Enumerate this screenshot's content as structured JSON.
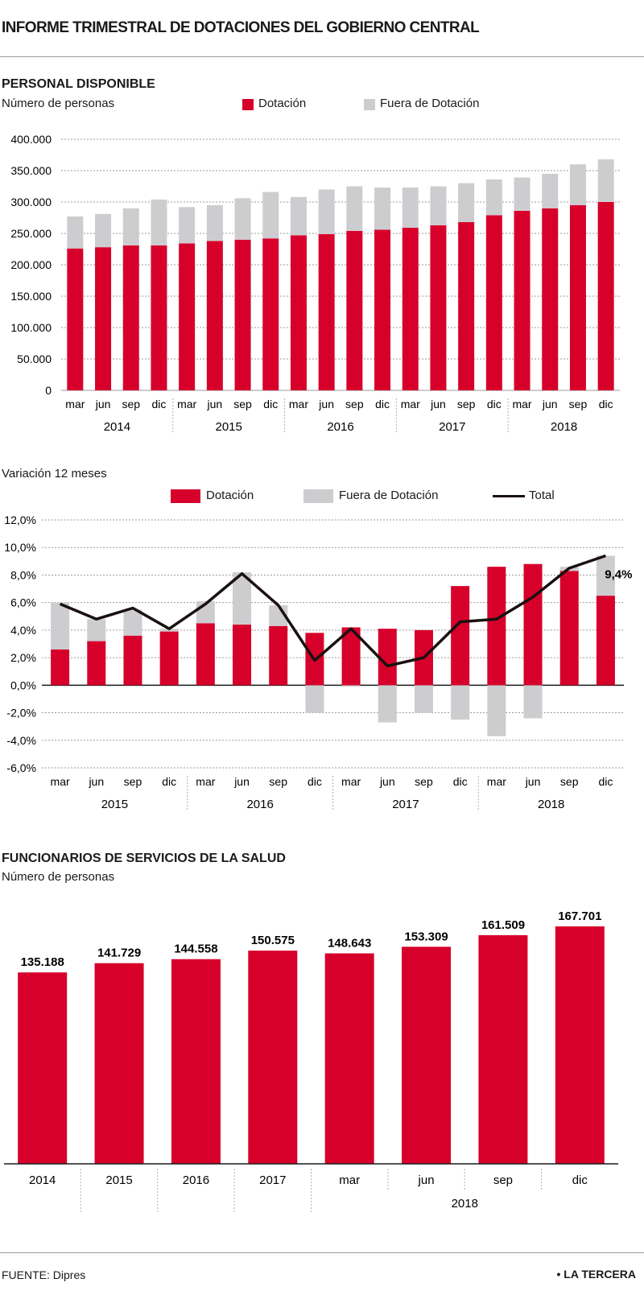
{
  "title": "INFORME TRIMESTRAL DE DOTACIONES DEL GOBIERNO CENTRAL",
  "colors": {
    "dotacion": "#d6002a",
    "fuera": "#cdcdd0",
    "total": "#1a1010",
    "grid": "#9a9a9a"
  },
  "footer": {
    "source": "FUENTE: Dipres",
    "brand": "• LA TERCERA"
  },
  "chart1": {
    "section_title": "PERSONAL DISPONIBLE",
    "subtitle": "Número de personas",
    "legend": [
      "Dotación",
      "Fuera de Dotación"
    ]
  },
  "chart2": {
    "subtitle": "Variación 12 meses",
    "legend": [
      "Dotación",
      "Fuera de Dotación",
      "Total"
    ],
    "annotation": "9,4%"
  },
  "chart3": {
    "section_title": "FUNCIONARIOS DE SERVICIOS DE LA SALUD",
    "subtitle": "Número de personas"
  },
  "chart_data": [
    {
      "type": "bar",
      "stacked": true,
      "title": "PERSONAL DISPONIBLE",
      "ylabel": "Número de personas",
      "ylim": [
        0,
        400000
      ],
      "yticks": [
        0,
        50000,
        100000,
        150000,
        200000,
        250000,
        300000,
        350000,
        400000
      ],
      "ytick_labels": [
        "0",
        "50.000",
        "100.000",
        "150.000",
        "200.000",
        "250.000",
        "300.000",
        "350.000",
        "400.000"
      ],
      "categories": [
        "mar",
        "jun",
        "sep",
        "dic",
        "mar",
        "jun",
        "sep",
        "dic",
        "mar",
        "jun",
        "sep",
        "dic",
        "mar",
        "jun",
        "sep",
        "dic",
        "mar",
        "jun",
        "sep",
        "dic"
      ],
      "groups": [
        "2014",
        "2015",
        "2016",
        "2017",
        "2018"
      ],
      "grid": true,
      "series": [
        {
          "name": "Dotación",
          "values": [
            226000,
            228000,
            231000,
            231000,
            234000,
            238000,
            240000,
            242000,
            247000,
            249000,
            254000,
            256000,
            259000,
            263000,
            268000,
            279000,
            286000,
            290000,
            295000,
            300000
          ]
        },
        {
          "name": "Fuera de Dotación",
          "values": [
            51000,
            53000,
            59000,
            73000,
            58000,
            57000,
            66000,
            74000,
            61000,
            71000,
            71000,
            67000,
            64000,
            62000,
            62000,
            57000,
            53000,
            55000,
            65000,
            68000
          ]
        }
      ]
    },
    {
      "type": "bar",
      "title": "Variación 12 meses",
      "ylim": [
        -6,
        12
      ],
      "yticks": [
        -6,
        -4,
        -2,
        0,
        2,
        4,
        6,
        8,
        10,
        12
      ],
      "ytick_labels": [
        "-6,0%",
        "-4,0%",
        "-2,0%",
        "0,0%",
        "2,0%",
        "4,0%",
        "6,0%",
        "8,0%",
        "10,0%",
        "12,0%"
      ],
      "categories": [
        "mar",
        "jun",
        "sep",
        "dic",
        "mar",
        "jun",
        "sep",
        "dic",
        "mar",
        "jun",
        "sep",
        "dic",
        "mar",
        "jun",
        "sep",
        "dic"
      ],
      "groups": [
        "2015",
        "2016",
        "2017",
        "2018"
      ],
      "grid": true,
      "series": [
        {
          "name": "Dotación",
          "values": [
            2.6,
            3.2,
            3.6,
            3.9,
            4.5,
            4.4,
            4.3,
            3.8,
            4.2,
            4.1,
            4.0,
            7.2,
            8.6,
            8.8,
            8.3,
            6.5
          ]
        },
        {
          "name": "Fuera de Dotación",
          "values": [
            3.4,
            1.6,
            1.9,
            0.2,
            1.6,
            3.8,
            1.5,
            -2.0,
            -0.1,
            -2.7,
            -2.0,
            -2.5,
            -3.7,
            -2.4,
            0.3,
            2.9
          ]
        },
        {
          "name": "Total",
          "type": "line",
          "values": [
            5.9,
            4.8,
            5.6,
            4.1,
            5.9,
            8.1,
            5.8,
            1.8,
            4.1,
            1.4,
            2.0,
            4.6,
            4.8,
            6.4,
            8.5,
            9.4
          ]
        }
      ],
      "annotations": [
        "9,4%"
      ]
    },
    {
      "type": "bar",
      "title": "FUNCIONARIOS DE SERVICIOS DE LA SALUD",
      "ylabel": "Número de personas",
      "categories": [
        "2014",
        "2015",
        "2016",
        "2017",
        "mar",
        "jun",
        "sep",
        "dic"
      ],
      "group_label": "2018",
      "values": [
        135188,
        141729,
        144558,
        150575,
        148643,
        153309,
        161509,
        167701
      ],
      "value_labels": [
        "135.188",
        "141.729",
        "144.558",
        "150.575",
        "148.643",
        "153.309",
        "161.509",
        "167.701"
      ],
      "ylim": [
        0,
        167701
      ]
    }
  ]
}
